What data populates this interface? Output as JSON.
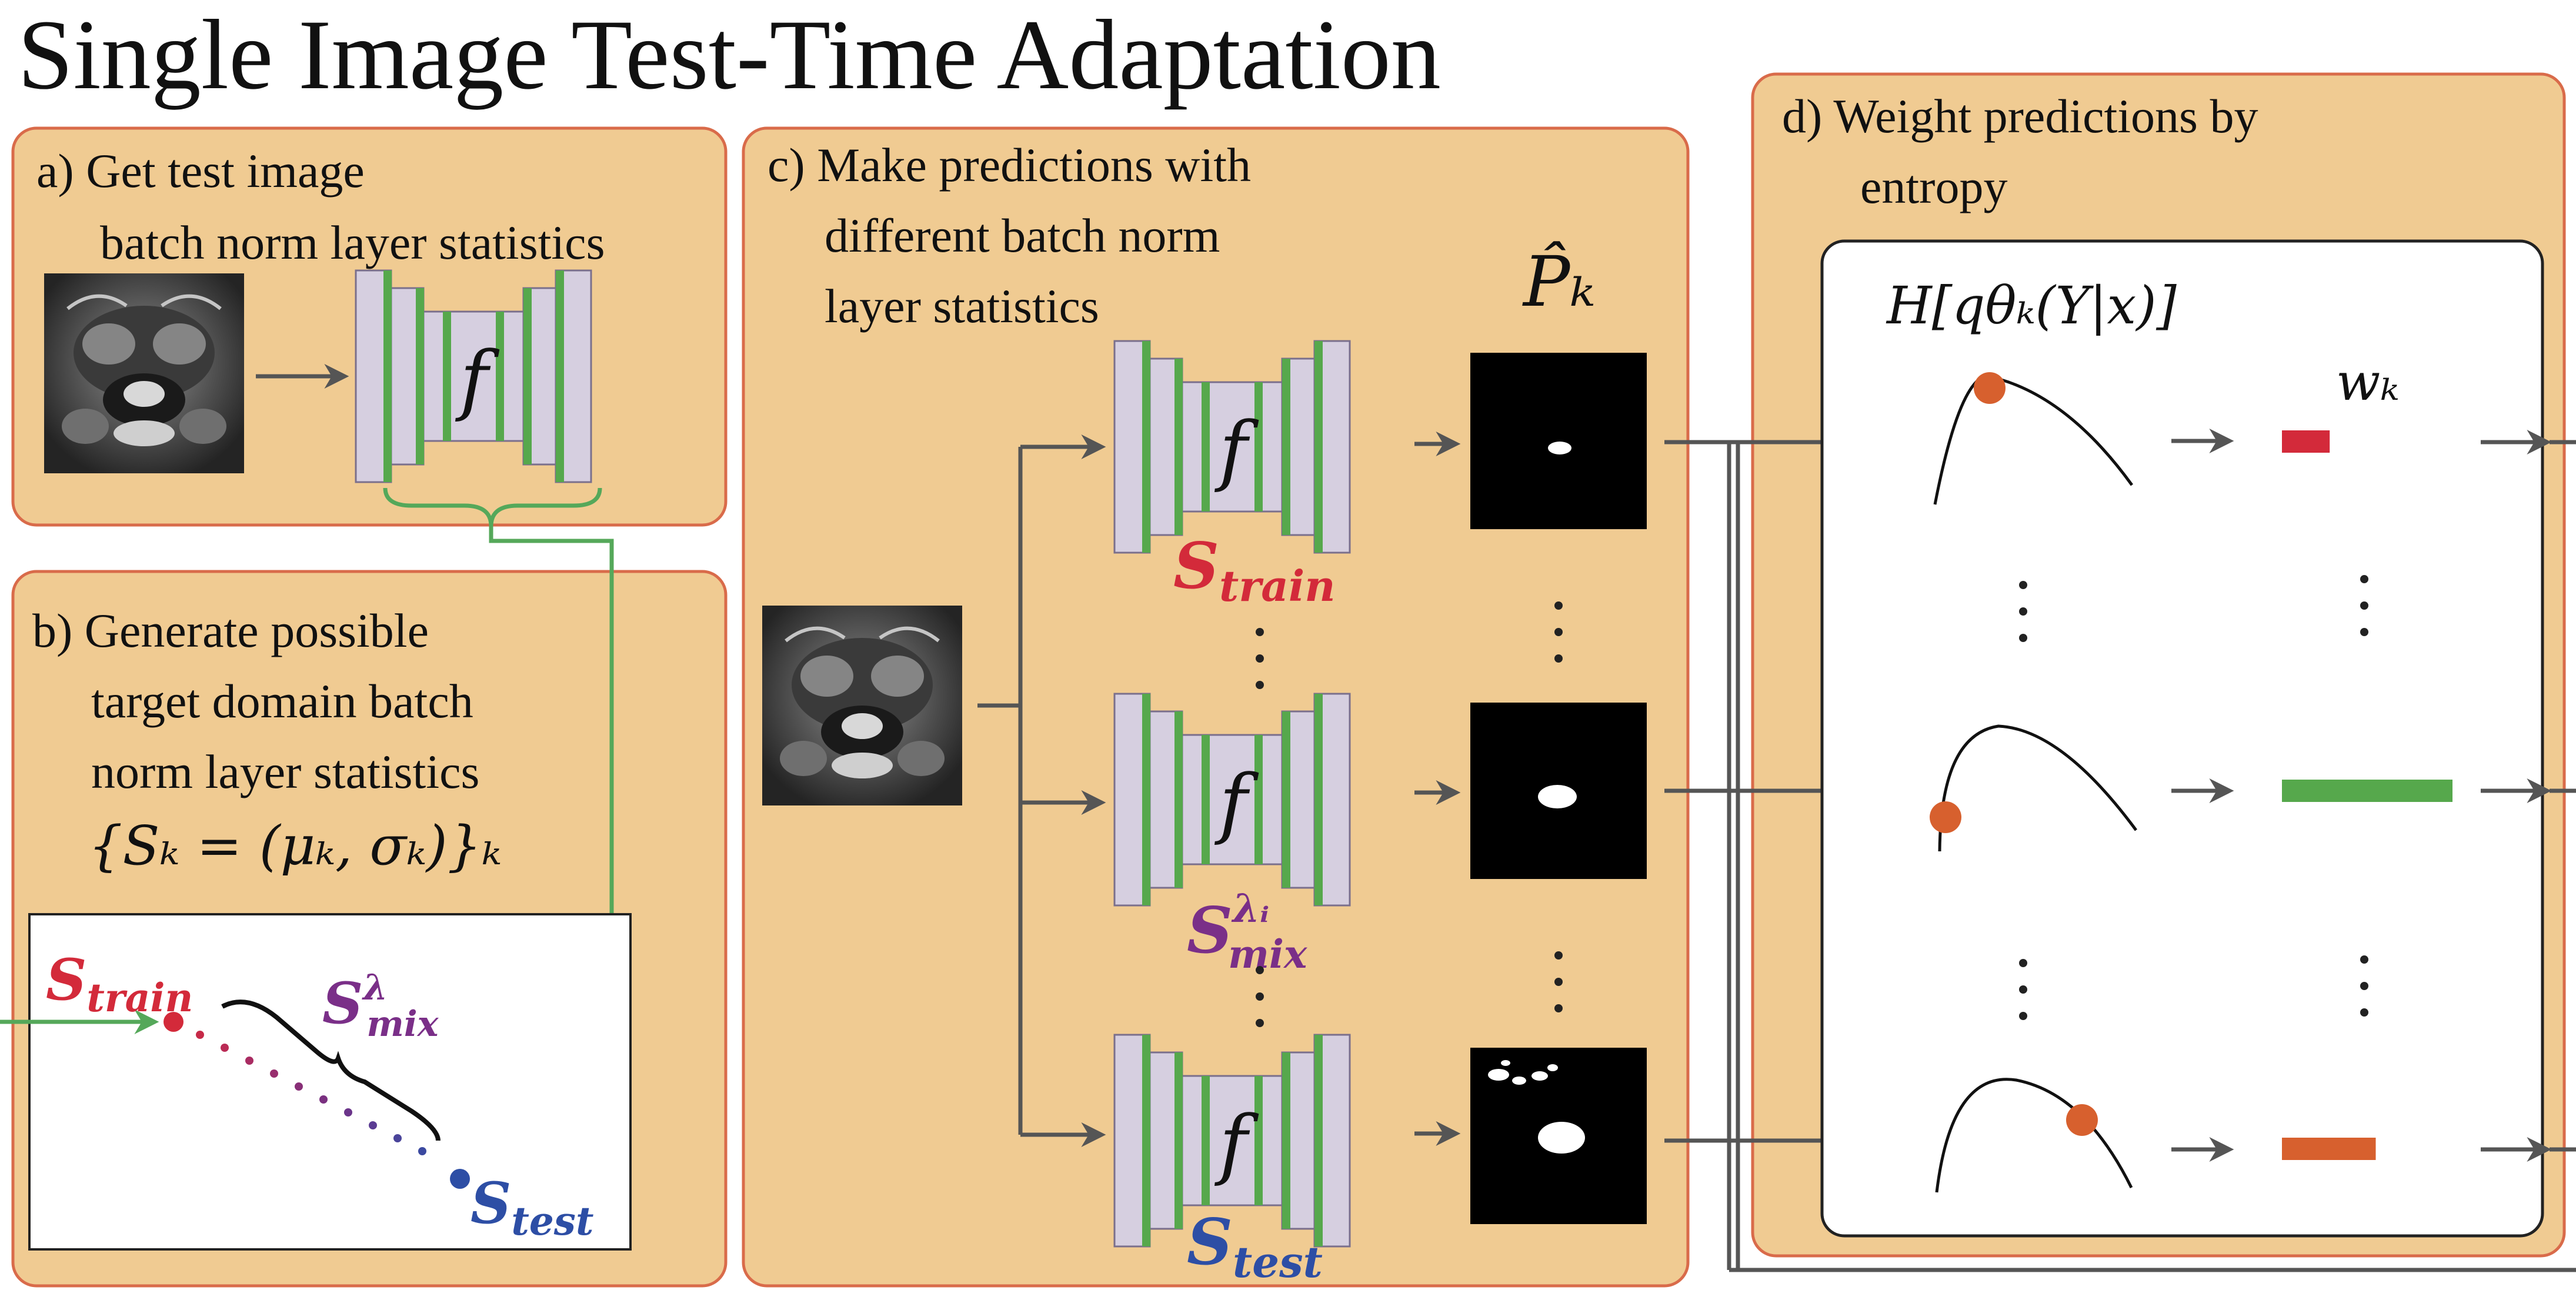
{
  "title": "Single Image Test-Time Adaptation",
  "panel_a": {
    "line1": "a) Get test image",
    "line2": "batch norm layer statistics",
    "net_label": "f"
  },
  "panel_b": {
    "line1": "b) Generate possible",
    "line2": "target domain batch",
    "line3": "norm layer statistics",
    "formula": "{Sₖ = (μₖ, σₖ)}ₖ",
    "s_train": {
      "main": "S",
      "sub": "train"
    },
    "s_test": {
      "main": "S",
      "sub": "test"
    },
    "s_mix": {
      "main": "S",
      "sup": "λ",
      "sub": "mix"
    }
  },
  "panel_c": {
    "line1": "c) Make predictions with",
    "line2": "different batch norm",
    "line3": "layer statistics",
    "pred_label": "P̂ₖ",
    "net_label": "f",
    "nets": [
      {
        "main": "S",
        "sub": "train",
        "sup": ""
      },
      {
        "main": "S",
        "sub": "mix",
        "sup": "λᵢ"
      },
      {
        "main": "S",
        "sub": "test",
        "sup": ""
      }
    ]
  },
  "panel_d": {
    "line1": "d) Weight predictions by",
    "line2": "entropy",
    "entropy_label": "H[qθₖ(Y|x)]",
    "weight_label": "wₖ",
    "weights": [
      {
        "value": 0.28,
        "color": "#d32a3a"
      },
      {
        "value": 1.0,
        "color": "#56a84c"
      },
      {
        "value": 0.55,
        "color": "#d7602e"
      }
    ]
  },
  "colors": {
    "panel_fill": "#f0cb92",
    "panel_border": "#d96b4a",
    "train_red": "#d32a3a",
    "test_blue": "#2d4ea5",
    "mix_purple": "#7a2f88",
    "connector_green": "#55a85a",
    "entropy_point": "#d7602e"
  }
}
